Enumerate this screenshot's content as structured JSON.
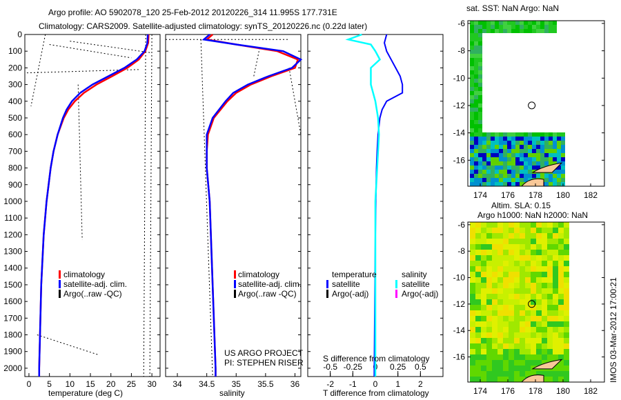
{
  "title_line1": "Argo profile: AO 5902078_120 25-Feb-2012 20120226_314 11.995S 177.731E",
  "title_line2": "Climatology: CARS2009. Satellite-adjusted climatology: synTS_20120226.nc (0.22d later)",
  "colors": {
    "climatology": "#ff0000",
    "satellite": "#0000ff",
    "argo": "#000000",
    "sal_satellite": "#00ffff",
    "sal_argo": "#ff00ff"
  },
  "chart_data": [
    {
      "type": "line",
      "xlabel": "temperature (deg C)",
      "ylabel": "",
      "xlim": [
        -1,
        32
      ],
      "ylim": [
        2050,
        0
      ],
      "xticks": [
        0,
        5,
        10,
        15,
        20,
        25,
        30
      ],
      "yticks": [
        0,
        100,
        200,
        300,
        400,
        500,
        600,
        700,
        800,
        900,
        1000,
        1100,
        1200,
        1300,
        1400,
        1500,
        1600,
        1700,
        1800,
        1900,
        2000
      ],
      "legend": [
        "climatology",
        "satellite-adj. clim.",
        "Argo(..raw -QC)"
      ],
      "series": [
        {
          "name": "climatology",
          "depth": [
            0,
            50,
            100,
            150,
            200,
            250,
            300,
            350,
            400,
            450,
            500,
            600,
            700,
            800,
            1000,
            1200,
            1500,
            2000,
            2050
          ],
          "values": [
            29.2,
            29.1,
            28.4,
            26.8,
            24.0,
            20.3,
            16.5,
            13.4,
            11.2,
            9.6,
            8.5,
            7.0,
            6.0,
            5.3,
            4.3,
            3.6,
            3.0,
            2.5,
            2.5
          ]
        },
        {
          "name": "satellite-adj. clim.",
          "depth": [
            0,
            50,
            100,
            150,
            200,
            250,
            300,
            350,
            400,
            450,
            500,
            600,
            700,
            800,
            1000,
            1200,
            1500,
            2000,
            2050
          ],
          "values": [
            29.0,
            28.9,
            28.2,
            26.3,
            23.3,
            19.4,
            15.5,
            12.5,
            10.5,
            9.2,
            8.3,
            7.0,
            6.0,
            5.3,
            4.3,
            3.6,
            3.0,
            2.5,
            2.5
          ]
        }
      ]
    },
    {
      "type": "line",
      "xlabel": "salinity",
      "xlim": [
        33.8,
        36.1
      ],
      "ylim": [
        2050,
        0
      ],
      "xticks": [
        34,
        34.5,
        35,
        35.5,
        36
      ],
      "legend": [
        "climatology",
        "satellite-adj. clim.",
        "Argo(..raw -QC)"
      ],
      "annotation": [
        "US ARGO PROJECT",
        "PI: STEPHEN RISER"
      ],
      "series": [
        {
          "name": "climatology",
          "depth": [
            0,
            30,
            60,
            100,
            150,
            200,
            250,
            300,
            350,
            400,
            500,
            600,
            700,
            800,
            1000,
            1500,
            2000,
            2050
          ],
          "values": [
            34.6,
            34.5,
            35.0,
            35.7,
            36.05,
            36.0,
            35.6,
            35.25,
            35.0,
            34.85,
            34.62,
            34.52,
            34.5,
            34.5,
            34.55,
            34.6,
            34.65,
            34.65
          ]
        },
        {
          "name": "satellite-adj. clim.",
          "depth": [
            0,
            30,
            60,
            100,
            150,
            200,
            250,
            300,
            350,
            400,
            500,
            600,
            700,
            800,
            1000,
            1500,
            2000,
            2050
          ],
          "values": [
            34.55,
            34.45,
            35.0,
            35.8,
            36.1,
            35.95,
            35.55,
            35.2,
            34.95,
            34.82,
            34.6,
            34.5,
            34.5,
            34.5,
            34.55,
            34.6,
            34.65,
            34.65
          ]
        }
      ]
    },
    {
      "type": "line",
      "xlabel": "T difference from climatology",
      "x2label": "S difference from climatology",
      "xlim": [
        -3,
        3
      ],
      "x2lim": [
        -0.75,
        0.75
      ],
      "ylim": [
        2050,
        0
      ],
      "xticks": [
        -2,
        -1,
        0,
        1,
        2
      ],
      "x2ticks": [
        -0.5,
        -0.25,
        0,
        0.25,
        0.5
      ],
      "legend_t_header": "temperature",
      "legend_s_header": "salinity",
      "legend_t": [
        "satellite",
        "Argo(-adj)"
      ],
      "legend_s": [
        "satellite",
        "Argo(-adj)"
      ],
      "series": [
        {
          "name": "T satellite",
          "depth": [
            0,
            50,
            100,
            150,
            200,
            250,
            300,
            350,
            400,
            450,
            500,
            600,
            700,
            800,
            1000,
            1200,
            2050
          ],
          "values": [
            0.5,
            0.4,
            0.5,
            0.7,
            0.9,
            1.1,
            1.2,
            1.2,
            0.5,
            0.3,
            0.2,
            0.12,
            0.08,
            0.05,
            0.02,
            0,
            -0.05
          ]
        },
        {
          "name": "S satellite",
          "depth": [
            0,
            30,
            60,
            100,
            150,
            200,
            300,
            400,
            500,
            600,
            800,
            1000,
            2050
          ],
          "values": [
            -0.15,
            -0.3,
            -0.05,
            0.0,
            0.05,
            -0.05,
            -0.05,
            0.0,
            0.03,
            0.04,
            0.02,
            0.0,
            0.0
          ]
        }
      ]
    },
    {
      "type": "heatmap",
      "title": "sat. SST: NaN Argo: NaN",
      "xticks": [
        174,
        176,
        178,
        180,
        182
      ],
      "yticks": [
        -6,
        -8,
        -10,
        -12,
        -14,
        -16
      ],
      "xlim": [
        173.1,
        183.0
      ],
      "ylim": [
        -17.9,
        -5.8
      ],
      "float_position": [
        177.731,
        -11.995
      ]
    },
    {
      "type": "heatmap",
      "title_line1": "Altim. SLA: 0.15",
      "title_line2": "Argo h1000: NaN h2000: NaN",
      "side_label": "IMOS 03-Mar-2012 17:00:21",
      "xticks": [
        174,
        176,
        178,
        180,
        182
      ],
      "yticks": [
        -6,
        -8,
        -10,
        -12,
        -14,
        -16
      ],
      "xlim": [
        173.1,
        183.0
      ],
      "ylim": [
        -17.9,
        -5.8
      ],
      "float_position": [
        177.731,
        -11.995
      ]
    }
  ]
}
